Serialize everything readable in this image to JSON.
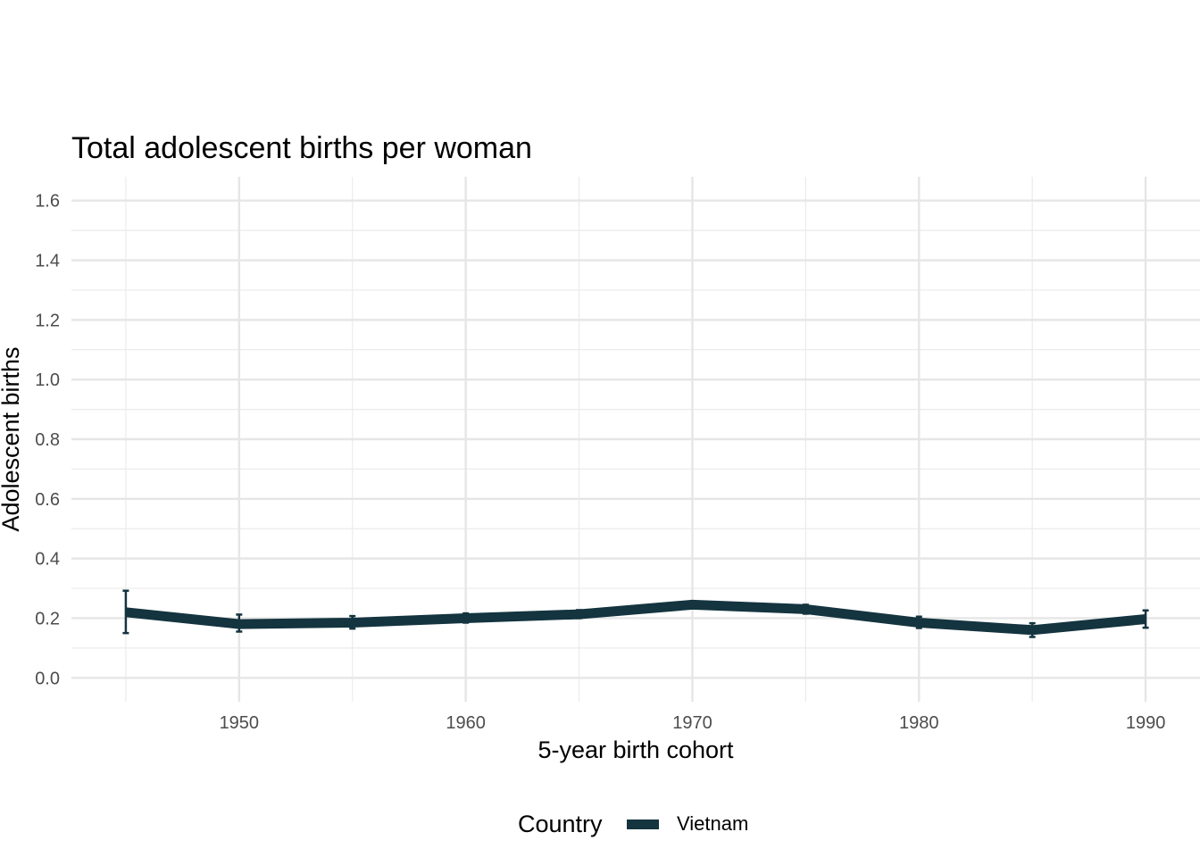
{
  "chart_data": {
    "type": "line",
    "title": "Total adolescent births per woman",
    "xlabel": "5-year birth cohort",
    "ylabel": "Adolescent births",
    "xlim": [
      1942.6,
      1992.4
    ],
    "ylim": [
      -0.08,
      1.68
    ],
    "x_ticks": [
      1950,
      1960,
      1970,
      1980,
      1990
    ],
    "x_tick_labels": [
      "1950",
      "1960",
      "1970",
      "1980",
      "1990"
    ],
    "y_ticks": [
      0,
      0.2,
      0.4,
      0.6,
      0.8,
      1.0,
      1.2,
      1.4,
      1.6
    ],
    "y_tick_labels": [
      "0.0",
      "0.2",
      "0.4",
      "0.6",
      "0.8",
      "1.0",
      "1.2",
      "1.4",
      "1.6"
    ],
    "grid": true,
    "legend": {
      "title": "Country",
      "position": "bottom"
    },
    "series": [
      {
        "name": "Vietnam",
        "color": "#14343f",
        "x": [
          1945,
          1950,
          1955,
          1960,
          1965,
          1970,
          1975,
          1980,
          1985,
          1990
        ],
        "y": [
          0.22,
          0.18,
          0.185,
          0.2,
          0.213,
          0.245,
          0.23,
          0.185,
          0.16,
          0.197
        ],
        "lower": [
          0.15,
          0.155,
          0.165,
          0.185,
          0.2,
          0.233,
          0.215,
          0.167,
          0.137,
          0.168
        ],
        "upper": [
          0.292,
          0.212,
          0.207,
          0.216,
          0.227,
          0.257,
          0.245,
          0.205,
          0.183,
          0.226
        ]
      }
    ]
  }
}
